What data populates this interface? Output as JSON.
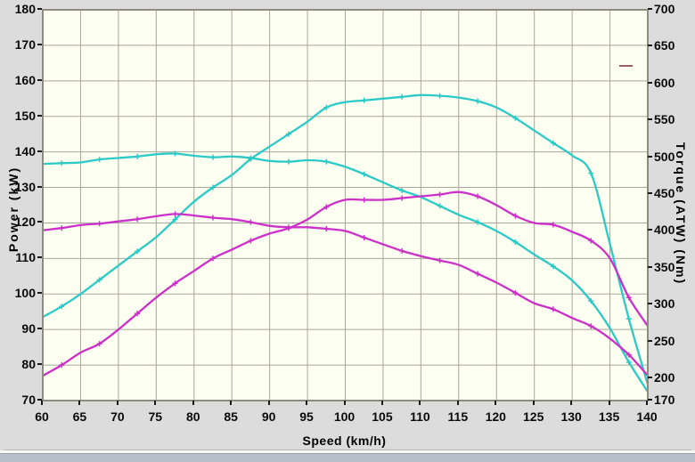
{
  "chart_data": {
    "type": "line",
    "title": "",
    "xlabel": "Speed (km/h)",
    "ylabel_left": "Power (kW)",
    "ylabel_right": "Torque (ATW) (Nm)",
    "x_range": [
      60,
      140
    ],
    "y_left_range": [
      70,
      180
    ],
    "y_right_range": [
      170,
      700
    ],
    "x_ticks": [
      60,
      65,
      70,
      75,
      80,
      85,
      90,
      95,
      100,
      105,
      110,
      115,
      120,
      125,
      130,
      135,
      140
    ],
    "y_left_ticks": [
      180,
      170,
      160,
      150,
      140,
      130,
      120,
      110,
      100,
      90,
      80,
      70
    ],
    "y_right_ticks": [
      700,
      650,
      600,
      550,
      500,
      450,
      400,
      350,
      300,
      250,
      200,
      170
    ],
    "grid": true,
    "plot_bg": "#fdfff1",
    "grid_color": "#a8a89a",
    "border_color": "#8c8c80",
    "legend_position": "none",
    "legend_dash_color": "#9b5f68",
    "x": [
      60,
      62.5,
      65,
      67.5,
      70,
      72.5,
      75,
      77.5,
      80,
      82.5,
      85,
      87.5,
      90,
      92.5,
      95,
      97.5,
      100,
      102.5,
      105,
      107.5,
      110,
      112.5,
      115,
      117.5,
      120,
      122.5,
      125,
      127.5,
      130,
      132.5,
      135,
      137.5,
      140
    ],
    "series": [
      {
        "name": "power-run-cyan",
        "axis": "left",
        "unit": "kW",
        "color": "#2bcac6",
        "values": [
          93.5,
          96.5,
          100,
          104,
          108,
          112,
          116,
          121,
          126,
          130,
          133.5,
          138,
          141.5,
          145,
          148.5,
          152.5,
          154,
          154.5,
          155,
          155.5,
          156,
          155.8,
          155.3,
          154.3,
          152.5,
          149.5,
          146,
          142.5,
          139,
          134,
          114,
          93,
          74.5
        ]
      },
      {
        "name": "torque-run-cyan",
        "axis": "right",
        "unit": "Nm",
        "color": "#2bcac6",
        "values": [
          491,
          492,
          493,
          497,
          499,
          501,
          504,
          505,
          502,
          500,
          501,
          499,
          495,
          494,
          496,
          494,
          487,
          477,
          466,
          455,
          446,
          434,
          422,
          412,
          400,
          385,
          368,
          352,
          333,
          305,
          268,
          222,
          182
        ]
      },
      {
        "name": "power-run-magenta",
        "axis": "left",
        "unit": "kW",
        "color": "#cd30c9",
        "values": [
          77,
          80,
          83.5,
          86,
          90,
          94.5,
          99,
          103,
          106.5,
          110,
          112.5,
          115,
          117,
          118.5,
          121,
          124.5,
          126.5,
          126.5,
          126.5,
          127,
          127.5,
          128,
          128.7,
          127.5,
          125,
          122,
          120,
          119.5,
          117.5,
          115,
          110,
          99,
          91
        ]
      },
      {
        "name": "torque-run-magenta",
        "axis": "right",
        "unit": "Nm",
        "color": "#cd30c9",
        "values": [
          401,
          404,
          408,
          410,
          413,
          416,
          420,
          423,
          421,
          418,
          416,
          412,
          407,
          405,
          405,
          403,
          400,
          391,
          382,
          373,
          366,
          360,
          354,
          342,
          330,
          316,
          302,
          294,
          282,
          271,
          254,
          232,
          204
        ]
      }
    ]
  }
}
